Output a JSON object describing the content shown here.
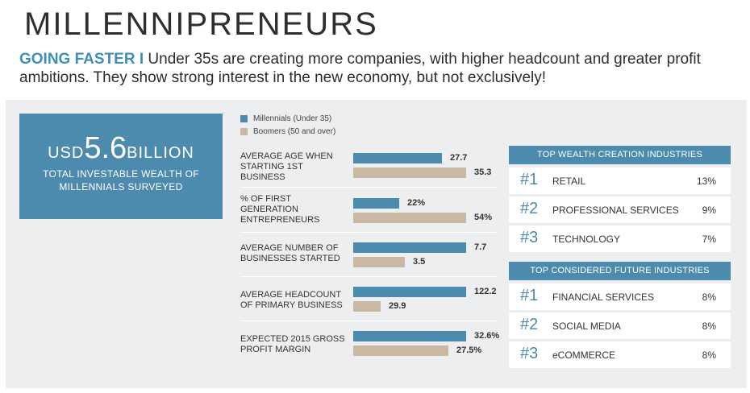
{
  "header": {
    "title": "MILLENNIPRENEURS",
    "lead": "GOING FASTER",
    "separator": "I",
    "text": "Under 35s are creating more companies, with  higher headcount and greater profit ambitions. They show strong interest in the new economy, but not exclusively!"
  },
  "wealth": {
    "currency": "USD",
    "amount": "5.6",
    "unit": "BILLION",
    "caption": "TOTAL INVESTABLE WEALTH OF MILLENNIALS SURVEYED"
  },
  "colors": {
    "millennials": "#4d8bae",
    "boomers": "#c9b9a4",
    "accent": "#3d8fb6"
  },
  "chart_data": {
    "type": "bar",
    "orientation": "horizontal",
    "title": "",
    "legend": [
      "Millennials (Under 35)",
      "Boomers (50 and over)"
    ],
    "categories": [
      "AVERAGE AGE WHEN STARTING 1ST BUSINESS",
      "% OF FIRST GENERATION ENTREPRENEURS",
      "AVERAGE NUMBER OF BUSINESSES STARTED",
      "AVERAGE HEADCOUNT OF PRIMARY BUSINESS",
      "EXPECTED 2015 GROSS PROFIT MARGIN"
    ],
    "series": [
      {
        "name": "Millennials (Under 35)",
        "values": [
          27.7,
          22,
          7.7,
          122.2,
          32.6
        ],
        "labels": [
          "27.7",
          "22%",
          "7.7",
          "122.2",
          "32.6%"
        ]
      },
      {
        "name": "Boomers (50 and over)",
        "values": [
          35.3,
          54,
          3.5,
          29.9,
          27.5
        ],
        "labels": [
          "35.3",
          "54%",
          "3.5",
          "29.9",
          "27.5%"
        ]
      }
    ],
    "per_category_scale": true
  },
  "industries": {
    "top_wealth": {
      "title": "TOP WEALTH CREATION INDUSTRIES",
      "items": [
        {
          "rank": "#1",
          "name": "RETAIL",
          "pct": "13%"
        },
        {
          "rank": "#2",
          "name": "PROFESSIONAL SERVICES",
          "pct": "9%"
        },
        {
          "rank": "#3",
          "name": "TECHNOLOGY",
          "pct": "7%"
        }
      ]
    },
    "future": {
      "title": "TOP CONSIDERED FUTURE INDUSTRIES",
      "items": [
        {
          "rank": "#1",
          "name": "FINANCIAL SERVICES",
          "pct": "8%"
        },
        {
          "rank": "#2",
          "name": "SOCIAL MEDIA",
          "pct": "8%"
        },
        {
          "rank": "#3",
          "name": "eCOMMERCE",
          "pct": "8%"
        }
      ]
    }
  }
}
